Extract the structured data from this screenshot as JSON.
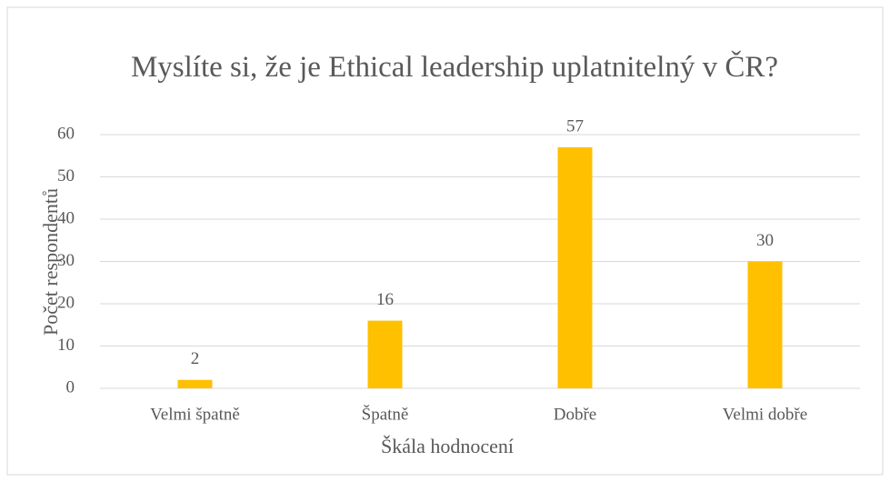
{
  "chart_data": {
    "type": "bar",
    "title": "Myslíte si, že je Ethical leadership uplatnitelný v ČR?",
    "categories": [
      "Velmi špatně",
      "Špatně",
      "Dobře",
      "Velmi dobře"
    ],
    "values": [
      2,
      16,
      57,
      30
    ],
    "color": "#ffc000",
    "ylim": [
      0,
      60
    ],
    "yticks": [
      0,
      10,
      20,
      30,
      40,
      50,
      60
    ],
    "grid": true,
    "xlabel": "Škála hodnocení",
    "ylabel": "Počet respondentů"
  }
}
